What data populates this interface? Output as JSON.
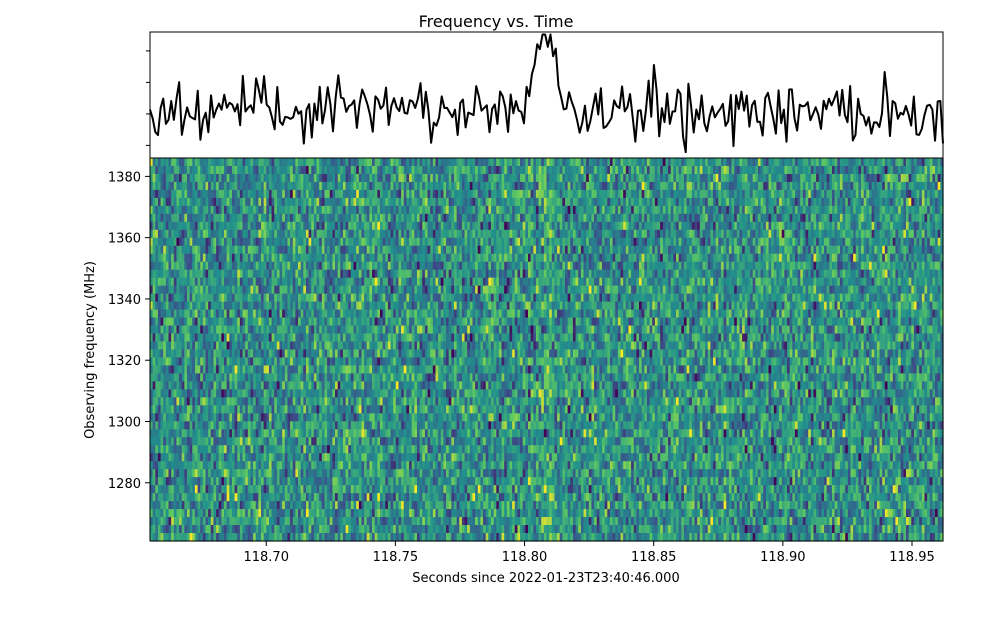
{
  "chart_data": [
    {
      "type": "line",
      "title": "Frequency vs. Time",
      "xlabel": "",
      "ylabel": "",
      "xlim": [
        118.655,
        118.962
      ],
      "ylim": [
        0,
        1
      ],
      "grid": false,
      "peak": {
        "x": 118.808,
        "y": 0.94
      },
      "noise_baseline": 0.38,
      "noise_spread": 0.22
    },
    {
      "type": "heatmap",
      "title": "",
      "xlabel": "Seconds since 2022-01-23T23:40:46.000",
      "ylabel": "Observing frequency (MHz)",
      "xlim": [
        118.655,
        118.962
      ],
      "ylim": [
        1261,
        1386
      ],
      "xticks": [
        "118.70",
        "118.75",
        "118.80",
        "118.85",
        "118.90",
        "118.95"
      ],
      "yticks": [
        "1280",
        "1300",
        "1320",
        "1340",
        "1360",
        "1380"
      ],
      "colormap": [
        "#440154",
        "#3b528b",
        "#21918c",
        "#5ec962",
        "#fde725"
      ],
      "time_bins": 300,
      "frequency_channels": 48,
      "burst_time": 118.808,
      "grid": false
    }
  ]
}
